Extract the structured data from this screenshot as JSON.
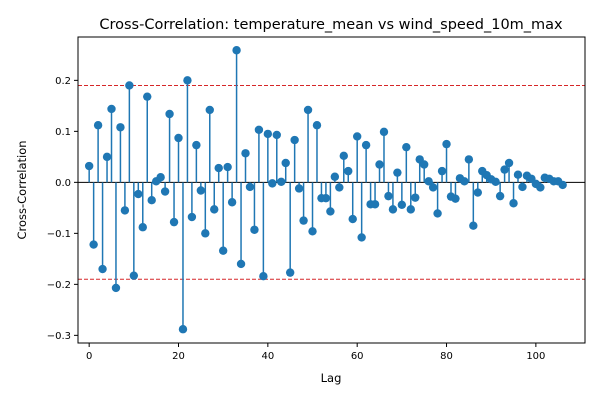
{
  "chart_data": {
    "type": "stem",
    "title": "Cross-Correlation: temperature_mean vs wind_speed_10m_max",
    "xlabel": "Lag",
    "ylabel": "Cross-Correlation",
    "xlim": [
      -2.5,
      111
    ],
    "ylim": [
      -0.315,
      0.285
    ],
    "xticks": [
      0,
      20,
      40,
      60,
      80,
      100
    ],
    "yticks": [
      -0.3,
      -0.2,
      -0.1,
      0.0,
      0.1,
      0.2
    ],
    "ytick_labels": [
      "−0.3",
      "−0.2",
      "−0.1",
      "0.0",
      "0.1",
      "0.2"
    ],
    "confidence_bounds": [
      0.19,
      -0.19
    ],
    "baseline": 0,
    "grid": false,
    "colors": {
      "stem": "#1f77b4",
      "baseline": "#000000",
      "bounds": "#d62728"
    },
    "lags": [
      0,
      1,
      2,
      3,
      4,
      5,
      6,
      7,
      8,
      9,
      10,
      11,
      12,
      13,
      14,
      15,
      16,
      17,
      18,
      19,
      20,
      21,
      22,
      23,
      24,
      25,
      26,
      27,
      28,
      29,
      30,
      31,
      32,
      33,
      34,
      35,
      36,
      37,
      38,
      39,
      40,
      41,
      42,
      43,
      44,
      45,
      46,
      47,
      48,
      49,
      50,
      51,
      52,
      53,
      54,
      55,
      56,
      57,
      58,
      59,
      60,
      61,
      62,
      63,
      64,
      65,
      66,
      67,
      68,
      69,
      70,
      71,
      72,
      73,
      74,
      75,
      76,
      77,
      78,
      79,
      80,
      81,
      82,
      83,
      84,
      85,
      86,
      87,
      88,
      89,
      90,
      91,
      92,
      93,
      94,
      95,
      96,
      97,
      98,
      99,
      100,
      101,
      102,
      103,
      104,
      105,
      106
    ],
    "values": [
      0.032,
      -0.122,
      0.112,
      -0.17,
      0.05,
      0.144,
      -0.207,
      0.108,
      -0.055,
      0.19,
      -0.183,
      -0.023,
      -0.088,
      0.168,
      -0.035,
      0.002,
      0.01,
      -0.018,
      0.134,
      -0.078,
      0.087,
      -0.288,
      0.2,
      -0.068,
      0.073,
      -0.016,
      -0.1,
      0.142,
      -0.053,
      0.028,
      -0.134,
      0.03,
      -0.039,
      0.259,
      -0.16,
      0.057,
      -0.009,
      -0.093,
      0.103,
      -0.184,
      0.095,
      -0.002,
      0.093,
      0.001,
      0.038,
      -0.177,
      0.083,
      -0.012,
      -0.075,
      0.142,
      -0.096,
      0.112,
      -0.031,
      -0.031,
      -0.057,
      0.011,
      -0.01,
      0.052,
      0.022,
      -0.072,
      0.09,
      -0.108,
      0.073,
      -0.043,
      -0.043,
      0.035,
      0.099,
      -0.027,
      -0.053,
      0.019,
      -0.044,
      0.069,
      -0.053,
      -0.03,
      0.045,
      0.035,
      0.002,
      -0.01,
      -0.061,
      0.022,
      0.075,
      -0.028,
      -0.032,
      0.008,
      0.002,
      0.045,
      -0.085,
      -0.02,
      0.022,
      0.014,
      0.006,
      0.001,
      -0.027,
      0.025,
      0.038,
      -0.041,
      0.015,
      -0.009,
      0.013,
      0.007,
      -0.003,
      -0.01,
      0.009,
      0.007,
      0.002,
      0.002,
      -0.005
    ]
  }
}
